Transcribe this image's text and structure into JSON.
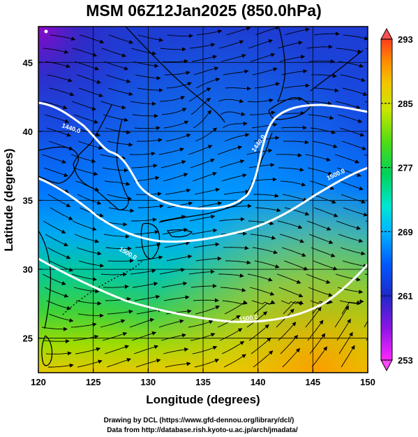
{
  "title": "MSM 06Z12Jan2025 (850.0hPa)",
  "x_axis": {
    "label": "Longitude (degrees)",
    "range": [
      120,
      150
    ],
    "ticks": [
      "120",
      "125",
      "130",
      "135",
      "140",
      "145",
      "150"
    ]
  },
  "y_axis": {
    "label": "Latitude  (degrees)",
    "range": [
      22.5,
      47.6
    ],
    "ticks": [
      "25",
      "30",
      "35",
      "40",
      "45"
    ]
  },
  "colorbar": {
    "range": [
      253,
      293
    ],
    "ticks": [
      "253",
      "261",
      "269",
      "277",
      "285",
      "293"
    ],
    "colors": [
      "#ff00ff",
      "#8000e0",
      "#1e28c8",
      "#0058ff",
      "#00b4ff",
      "#00e6c8",
      "#00d264",
      "#46dc14",
      "#b4e600",
      "#f0d200",
      "#ff9600",
      "#ff3c00"
    ]
  },
  "contour_labels": [
    "1440.0",
    "1440.0",
    "1500.0",
    "1500.0",
    "1500.0"
  ],
  "credits": [
    "Drawing by DCL (https://www.gfd-dennou.org/library/dcl/)",
    "Data from http://database.rish.kyoto-u.ac.jp/arch/jmadata/"
  ]
}
